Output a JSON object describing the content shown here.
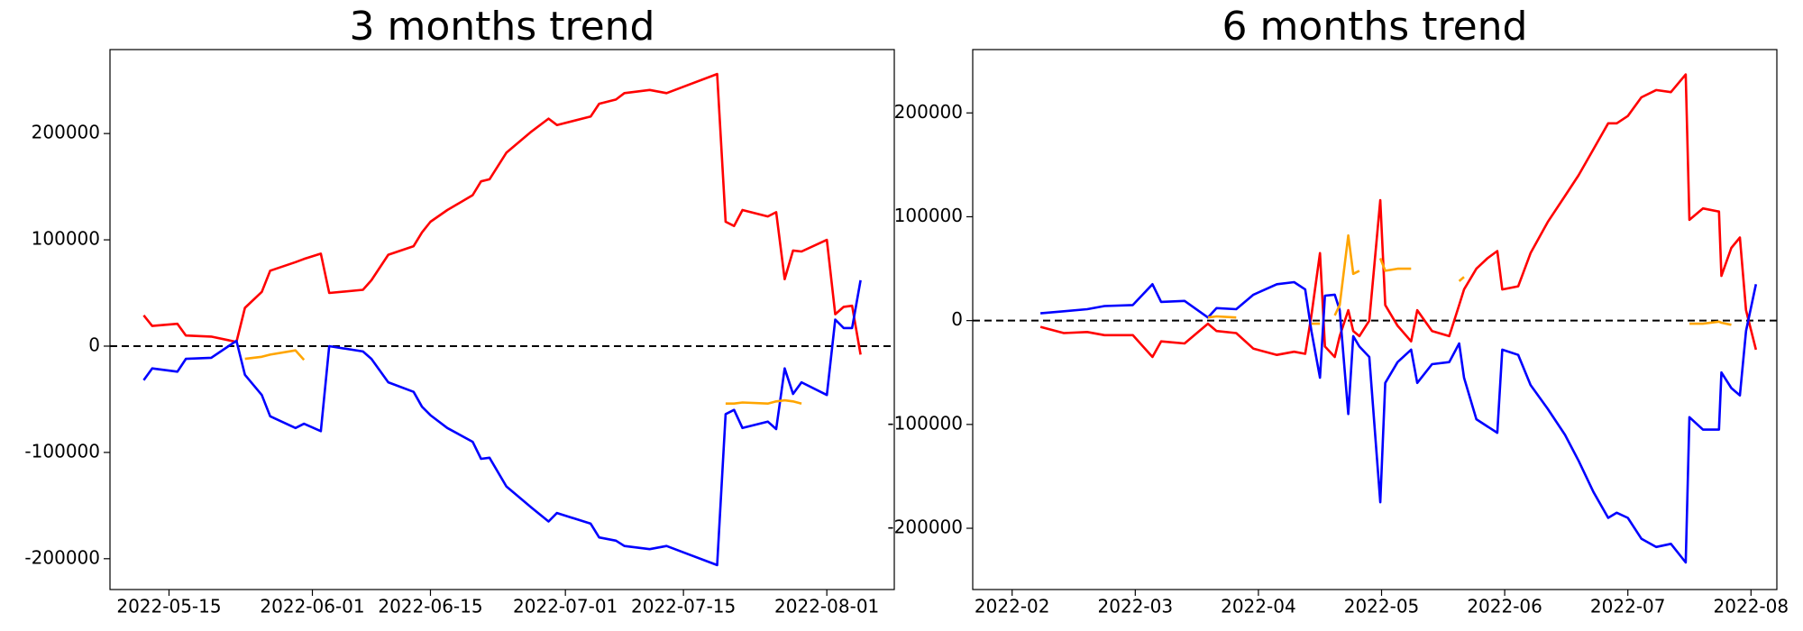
{
  "chart_data": [
    {
      "type": "line",
      "title": "3 months trend",
      "x": [
        "2022-05-12",
        "2022-05-13",
        "2022-05-16",
        "2022-05-17",
        "2022-05-20",
        "2022-05-23",
        "2022-05-24",
        "2022-05-26",
        "2022-05-27",
        "2022-05-30",
        "2022-05-31",
        "2022-06-02",
        "2022-06-03",
        "2022-06-07",
        "2022-06-08",
        "2022-06-10",
        "2022-06-13",
        "2022-06-14",
        "2022-06-15",
        "2022-06-17",
        "2022-06-20",
        "2022-06-21",
        "2022-06-22",
        "2022-06-24",
        "2022-06-27",
        "2022-06-29",
        "2022-06-30",
        "2022-07-04",
        "2022-07-05",
        "2022-07-07",
        "2022-07-08",
        "2022-07-11",
        "2022-07-13",
        "2022-07-19",
        "2022-07-20",
        "2022-07-21",
        "2022-07-22",
        "2022-07-25",
        "2022-07-26",
        "2022-07-27",
        "2022-07-28",
        "2022-07-29",
        "2022-08-01",
        "2022-08-02",
        "2022-08-03",
        "2022-08-04",
        "2022-08-05"
      ],
      "series": [
        {
          "color": "red",
          "values": [
            29000,
            19000,
            21000,
            10000,
            9000,
            4000,
            36000,
            51000,
            71000,
            79000,
            82000,
            87000,
            50000,
            53000,
            62000,
            86000,
            94000,
            107000,
            117000,
            128000,
            142000,
            155000,
            157000,
            182000,
            202000,
            214000,
            208000,
            216000,
            228000,
            232000,
            238000,
            241000,
            238000,
            256000,
            117000,
            113000,
            128000,
            122000,
            126000,
            63000,
            90000,
            89000,
            100000,
            30000,
            37000,
            38000,
            -8000
          ]
        },
        {
          "color": "blue",
          "values": [
            -32000,
            -21000,
            -24000,
            -12000,
            -11000,
            5000,
            -27000,
            -46000,
            -66000,
            -77000,
            -73000,
            -80000,
            0,
            -5000,
            -12000,
            -34000,
            -43000,
            -57000,
            -65000,
            -77000,
            -90000,
            -106000,
            -105000,
            -132000,
            -152000,
            -165000,
            -157000,
            -167000,
            -180000,
            -183000,
            -188000,
            -191000,
            -188000,
            -206000,
            -64000,
            -60000,
            -77000,
            -71000,
            -78000,
            -21000,
            -45000,
            -34000,
            -46000,
            25000,
            17000,
            17000,
            62000
          ]
        },
        {
          "color": "orange",
          "values": [
            null,
            null,
            null,
            null,
            null,
            null,
            -12000,
            -10000,
            -8000,
            -4000,
            -13000,
            null,
            null,
            null,
            null,
            null,
            null,
            null,
            null,
            null,
            null,
            null,
            null,
            null,
            null,
            null,
            null,
            null,
            null,
            null,
            null,
            null,
            null,
            null,
            -54000,
            -54000,
            -53000,
            -54000,
            -52000,
            -51000,
            -52000,
            -54000,
            null,
            null,
            null,
            null,
            null
          ]
        }
      ],
      "xlim": [
        "2022-05-08",
        "2022-08-09"
      ],
      "xticks": [
        "2022-05-15",
        "2022-06-01",
        "2022-06-15",
        "2022-07-01",
        "2022-07-15",
        "2022-08-01"
      ],
      "ylim": [
        -229000,
        279000
      ],
      "yticks": [
        -200000,
        -100000,
        0,
        100000,
        200000
      ],
      "hline": 0
    },
    {
      "type": "line",
      "title": "6 months trend",
      "x": [
        2.23,
        2.42,
        2.61,
        2.75,
        2.98,
        3.14,
        3.21,
        3.4,
        3.59,
        3.66,
        3.82,
        3.96,
        4.15,
        4.29,
        4.38,
        4.43,
        4.5,
        4.54,
        4.62,
        4.66,
        4.73,
        4.77,
        4.82,
        4.9,
        4.99,
        5.03,
        5.13,
        5.24,
        5.29,
        5.41,
        5.55,
        5.63,
        5.67,
        5.77,
        5.86,
        5.94,
        5.98,
        6.11,
        6.21,
        6.35,
        6.49,
        6.6,
        6.72,
        6.84,
        6.91,
        7.0,
        7.11,
        7.23,
        7.35,
        7.47,
        7.5,
        7.61,
        7.74,
        7.76,
        7.84,
        7.91,
        7.96,
        8.04
      ],
      "series": [
        {
          "color": "red",
          "values": [
            -6000,
            -12000,
            -11000,
            -14000,
            -14000,
            -35000,
            -20000,
            -22000,
            -3000,
            -10000,
            -12000,
            -27000,
            -33000,
            -30000,
            -32000,
            5000,
            65000,
            -25000,
            -35000,
            -15000,
            10000,
            -10000,
            -15000,
            0,
            116000,
            15000,
            -5000,
            -20000,
            10000,
            -10000,
            -15000,
            15000,
            30000,
            50000,
            60000,
            67000,
            30000,
            33000,
            65000,
            95000,
            120000,
            140000,
            165000,
            190000,
            190000,
            197000,
            215000,
            222000,
            220000,
            237000,
            97000,
            108000,
            105000,
            43000,
            70000,
            80000,
            10000,
            -28000
          ]
        },
        {
          "color": "blue",
          "values": [
            7000,
            9000,
            11000,
            14000,
            15000,
            35000,
            18000,
            19000,
            3000,
            12000,
            11000,
            25000,
            35000,
            37000,
            30000,
            -10000,
            -55000,
            24000,
            25000,
            10000,
            -90000,
            -15000,
            -25000,
            -35000,
            -175000,
            -60000,
            -40000,
            -28000,
            -60000,
            -42000,
            -40000,
            -22000,
            -55000,
            -95000,
            -102000,
            -108000,
            -28000,
            -33000,
            -62000,
            -85000,
            -110000,
            -135000,
            -165000,
            -190000,
            -185000,
            -190000,
            -210000,
            -218000,
            -215000,
            -233000,
            -93000,
            -105000,
            -105000,
            -50000,
            -65000,
            -72000,
            -10000,
            35000
          ]
        },
        {
          "color": "orange",
          "values": [
            null,
            null,
            null,
            null,
            null,
            null,
            null,
            null,
            3000,
            4000,
            3000,
            null,
            3000,
            null,
            null,
            -3000,
            -3000,
            null,
            5000,
            15000,
            82000,
            45000,
            48000,
            null,
            60000,
            48000,
            50000,
            50000,
            null,
            null,
            null,
            38000,
            42000,
            null,
            null,
            null,
            null,
            null,
            null,
            null,
            null,
            null,
            null,
            null,
            null,
            null,
            null,
            null,
            null,
            null,
            -3000,
            -3000,
            -1000,
            -2000,
            -4000,
            null,
            null,
            null
          ]
        }
      ],
      "xlim": [
        1.68,
        8.21
      ],
      "xticks": [
        {
          "value": 2,
          "label": "2022-02"
        },
        {
          "value": 3,
          "label": "2022-03"
        },
        {
          "value": 4,
          "label": "2022-04"
        },
        {
          "value": 5,
          "label": "2022-05"
        },
        {
          "value": 6,
          "label": "2022-06"
        },
        {
          "value": 7,
          "label": "2022-07"
        },
        {
          "value": 8,
          "label": "2022-08"
        }
      ],
      "ylim": [
        -259000,
        261000
      ],
      "yticks": [
        -200000,
        -100000,
        0,
        100000,
        200000
      ],
      "hline": 0
    }
  ]
}
